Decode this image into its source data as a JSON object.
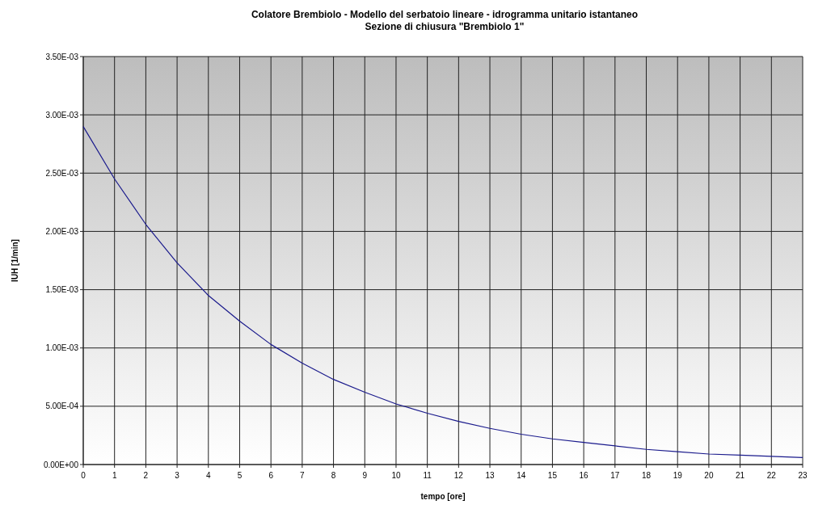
{
  "chart_data": {
    "type": "line",
    "title": "Colatore Brembiolo - Modello del serbatoio lineare - idrogramma unitario istantaneo",
    "subtitle": "Sezione di chiusura \"Brembiolo 1\"",
    "xlabel": "tempo [ore]",
    "ylabel": "IUH [1/min]",
    "x": [
      0,
      1,
      2,
      3,
      4,
      5,
      6,
      7,
      8,
      9,
      10,
      11,
      12,
      13,
      14,
      15,
      16,
      17,
      18,
      19,
      20,
      21,
      22,
      23
    ],
    "series": [
      {
        "color": "#1a1a8c",
        "values": [
          0.0029,
          0.00245,
          0.00206,
          0.00173,
          0.00145,
          0.00123,
          0.00103,
          0.00087,
          0.00073,
          0.00062,
          0.00052,
          0.00044,
          0.00037,
          0.00031,
          0.00026,
          0.00022,
          0.00019,
          0.00016,
          0.00013,
          0.00011,
          9e-05,
          8e-05,
          7e-05,
          6e-05
        ]
      }
    ],
    "xlim": [
      0,
      23
    ],
    "xticks": [
      0,
      1,
      2,
      3,
      4,
      5,
      6,
      7,
      8,
      9,
      10,
      11,
      12,
      13,
      14,
      15,
      16,
      17,
      18,
      19,
      20,
      21,
      22,
      23
    ],
    "ylim": [
      0,
      0.0035
    ],
    "yticks": [
      {
        "value": 0,
        "label": "0.00E+00"
      },
      {
        "value": 0.0005,
        "label": "5.00E-04"
      },
      {
        "value": 0.001,
        "label": "1.00E-03"
      },
      {
        "value": 0.0015,
        "label": "1.50E-03"
      },
      {
        "value": 0.002,
        "label": "2.00E-03"
      },
      {
        "value": 0.0025,
        "label": "2.50E-03"
      },
      {
        "value": 0.003,
        "label": "3.00E-03"
      },
      {
        "value": 0.0035,
        "label": "3.50E-03"
      }
    ],
    "grid": true,
    "marker": "none",
    "line_style": "solid"
  }
}
